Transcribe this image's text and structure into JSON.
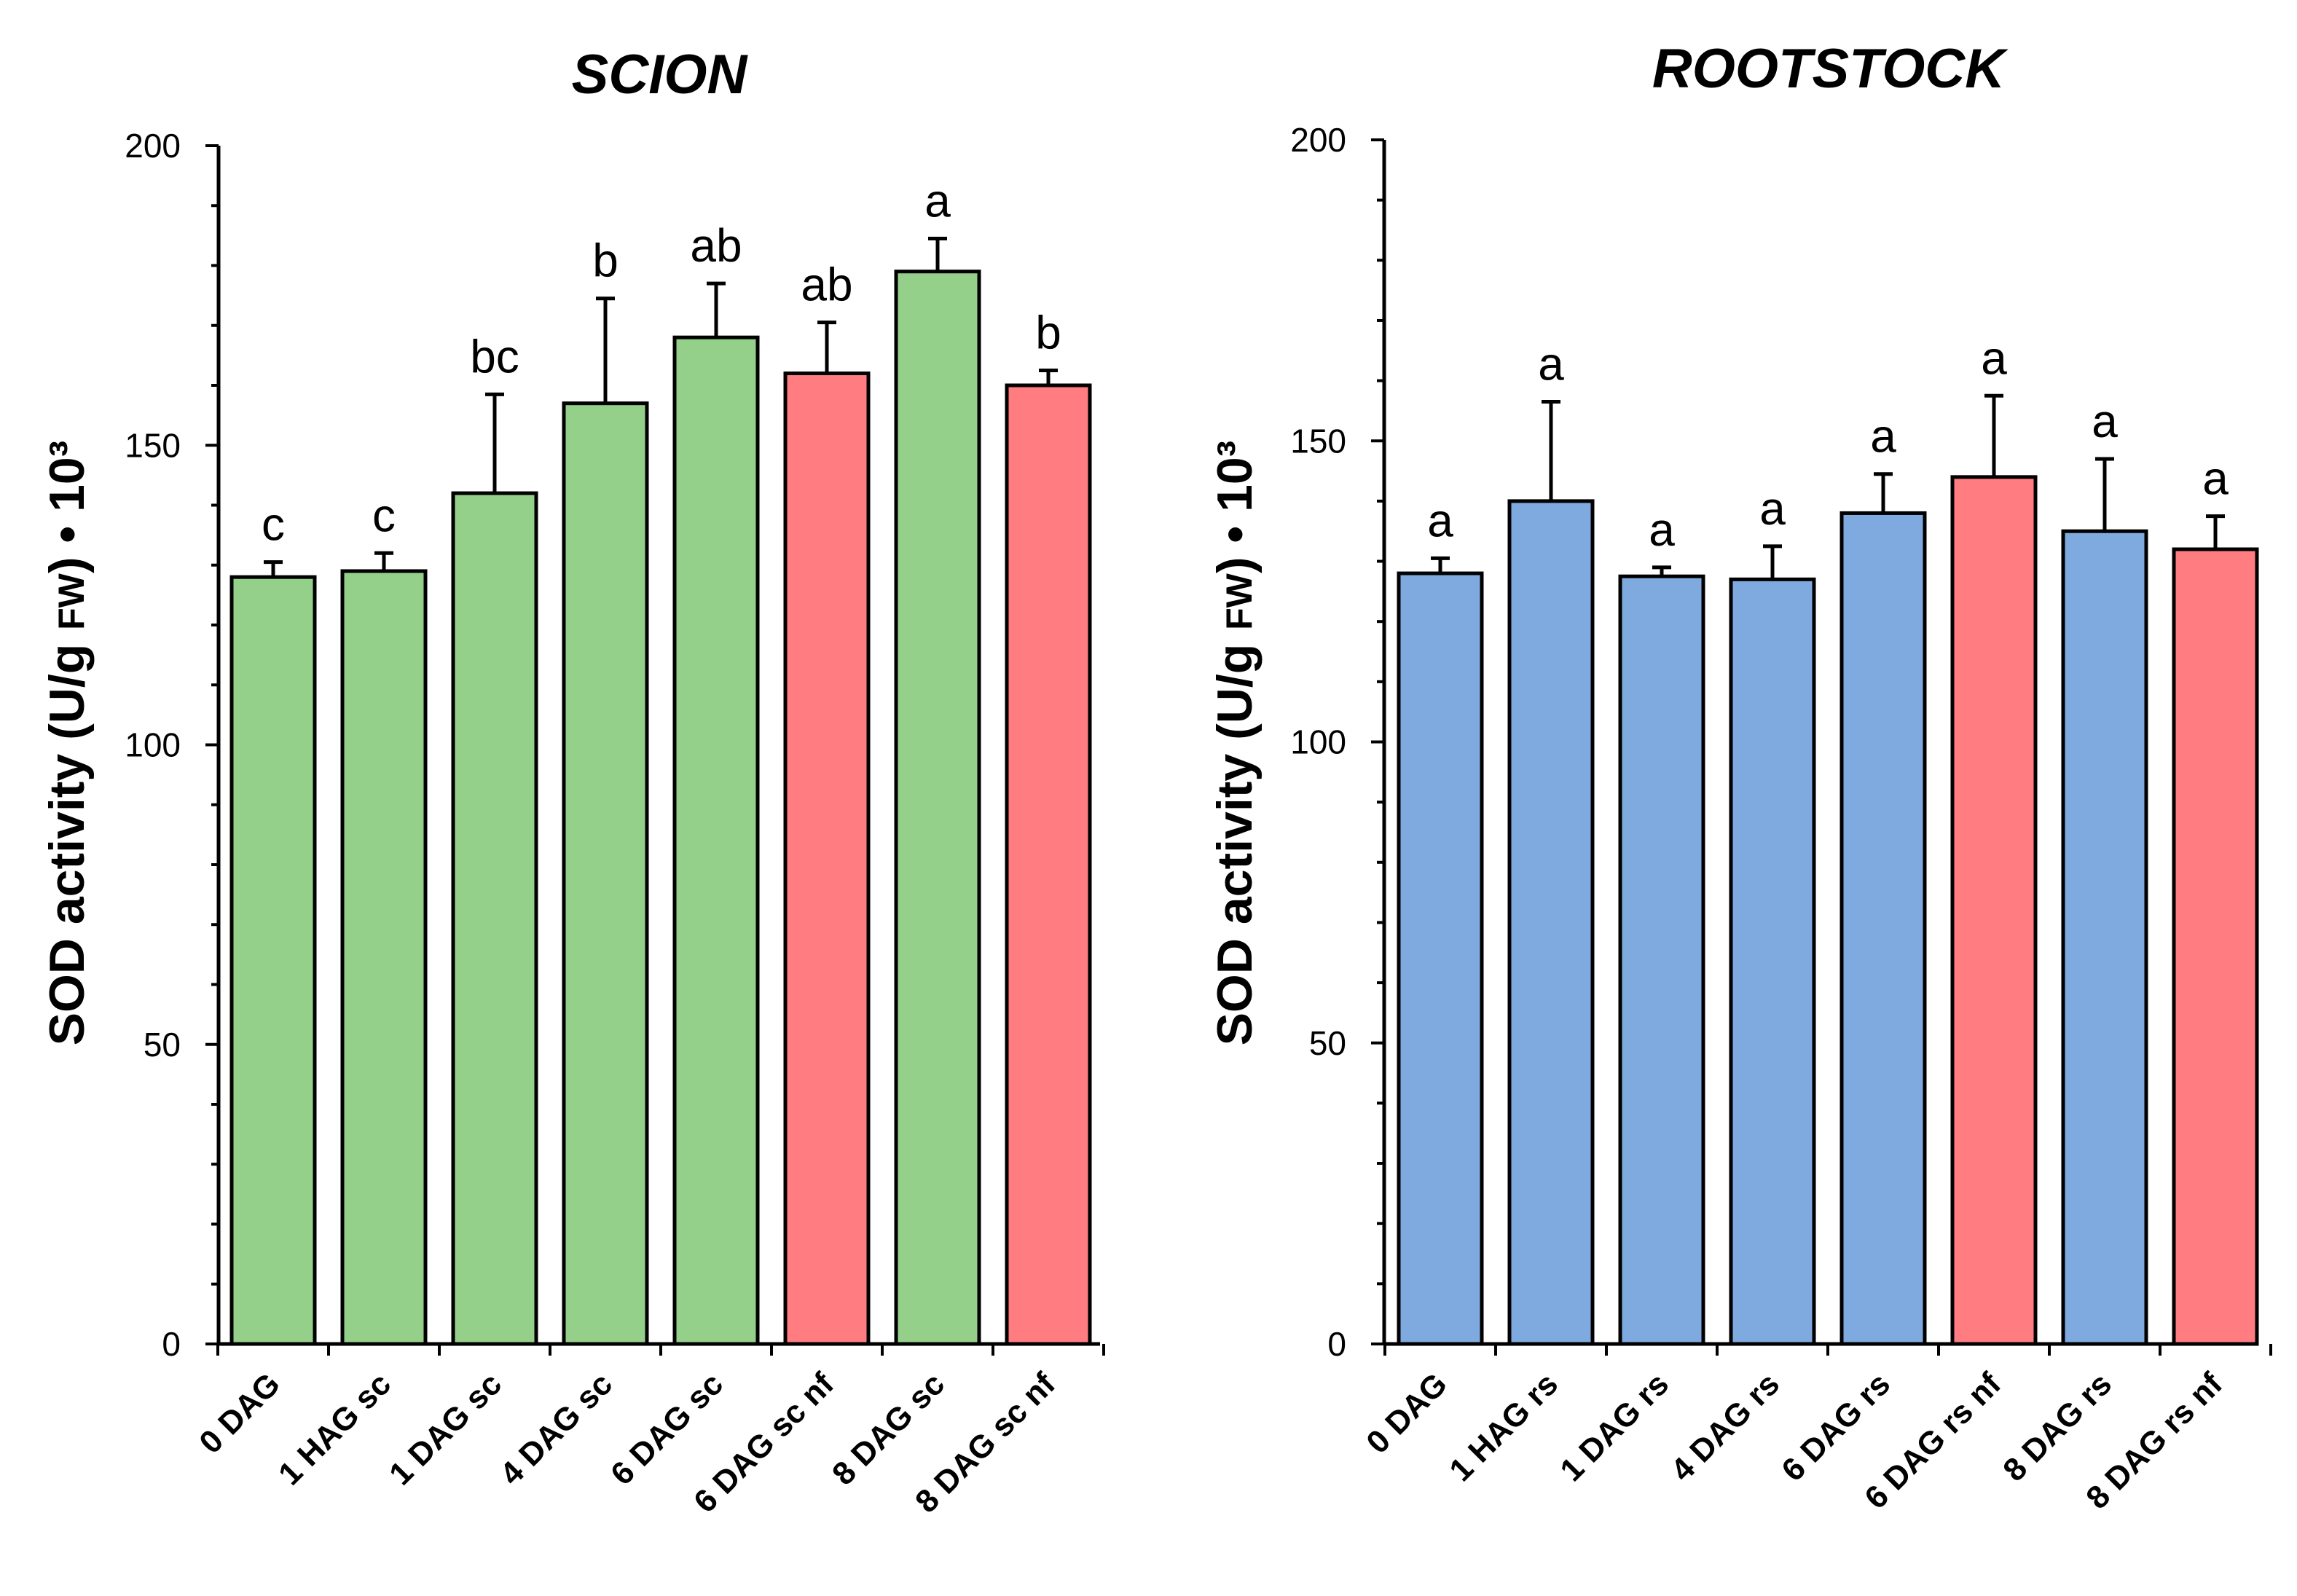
{
  "chart_data": [
    {
      "type": "bar",
      "title": "SCION",
      "ylabel": "SOD activity (U/g FW) • 10³",
      "ylabel_parts": {
        "main": "SOD activity (U/g ",
        "sub": "FW",
        "end": ") • 10³"
      },
      "xlabel": "",
      "ylim": [
        0,
        200
      ],
      "yticks": [
        0,
        50,
        100,
        150,
        200
      ],
      "categories": [
        "0 DAG",
        "1 HAG sc",
        "1 DAG sc",
        "4 DAG sc",
        "6 DAG sc",
        "6 DAG sc nf",
        "8 DAG sc",
        "8 DAG sc nf"
      ],
      "values": [
        128,
        129,
        142,
        157,
        168,
        162,
        179,
        160
      ],
      "errors": [
        2.5,
        3,
        16.5,
        17.5,
        9,
        8.5,
        5.5,
        2.5
      ],
      "letters": [
        "c",
        "c",
        "bc",
        "b",
        "ab",
        "ab",
        "a",
        "b"
      ],
      "colors": [
        "#95d08b",
        "#95d08b",
        "#95d08b",
        "#95d08b",
        "#95d08b",
        "#ff7c80",
        "#95d08b",
        "#ff7c80"
      ]
    },
    {
      "type": "bar",
      "title": "ROOTSTOCK",
      "ylabel": "SOD activity (U/g FW) • 10³",
      "ylabel_parts": {
        "main": "SOD activity (U/g ",
        "sub": "FW",
        "end": ") • 10³"
      },
      "xlabel": "",
      "ylim": [
        0,
        200
      ],
      "yticks": [
        0,
        50,
        100,
        150,
        200
      ],
      "categories": [
        "0 DAG",
        "1 HAG rs",
        "1 DAG rs",
        "4 DAG rs",
        "6 DAG rs",
        "6 DAG rs nf",
        "8 DAG rs",
        "8 DAG rs nf"
      ],
      "values": [
        128,
        140,
        127.5,
        127,
        138,
        144,
        135,
        132
      ],
      "errors": [
        2.5,
        16.5,
        1.5,
        5.5,
        6.5,
        13.5,
        12,
        5.5
      ],
      "letters": [
        "a",
        "a",
        "a",
        "a",
        "a",
        "a",
        "a",
        "a"
      ],
      "colors": [
        "#7faadf",
        "#7faadf",
        "#7faadf",
        "#7faadf",
        "#7faadf",
        "#ff7c80",
        "#7faadf",
        "#ff7c80"
      ]
    }
  ]
}
